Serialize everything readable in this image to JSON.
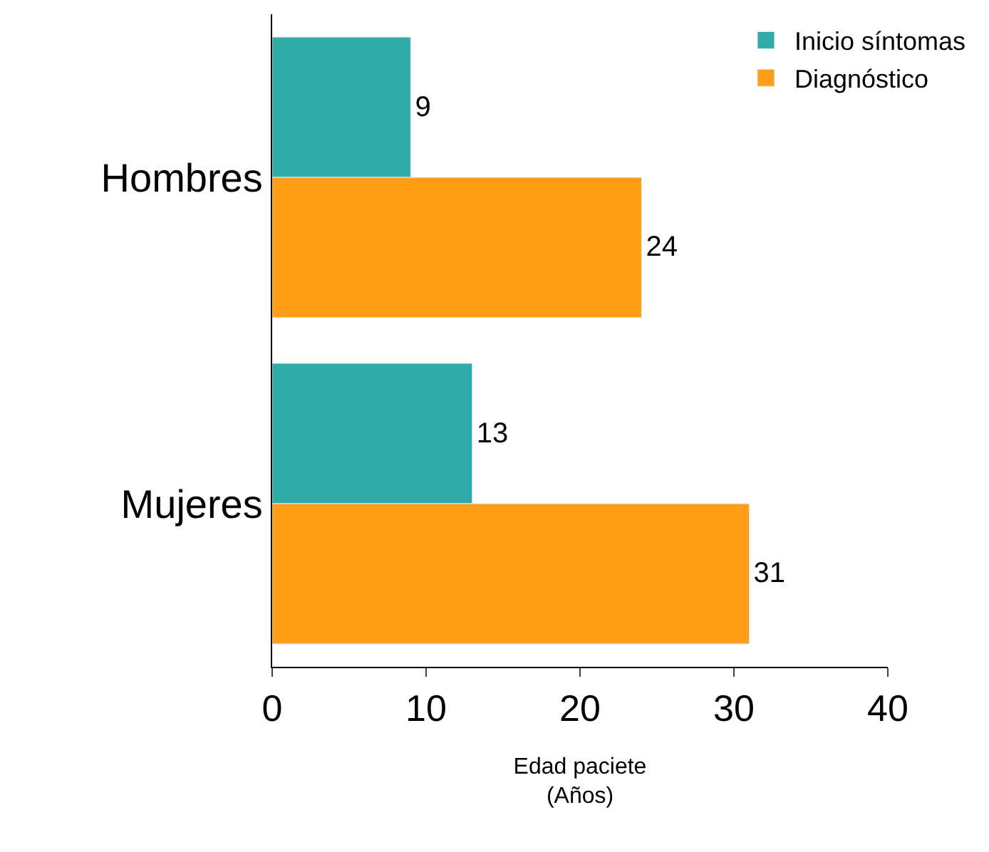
{
  "chart_data": {
    "type": "bar",
    "orientation": "horizontal",
    "categories": [
      "Hombres",
      "Mujeres"
    ],
    "series": [
      {
        "name": "Inicio síntomas",
        "color": "#2eaaa9",
        "values": [
          9,
          13
        ]
      },
      {
        "name": "Diagnóstico",
        "color": "#ff9e16",
        "values": [
          24,
          31
        ]
      }
    ],
    "xlabel": "Edad paciete\n(Años)",
    "xlim": [
      0,
      40
    ],
    "xticks": [
      0,
      10,
      20,
      30,
      40
    ],
    "data_labels": true,
    "legend": "top right"
  }
}
